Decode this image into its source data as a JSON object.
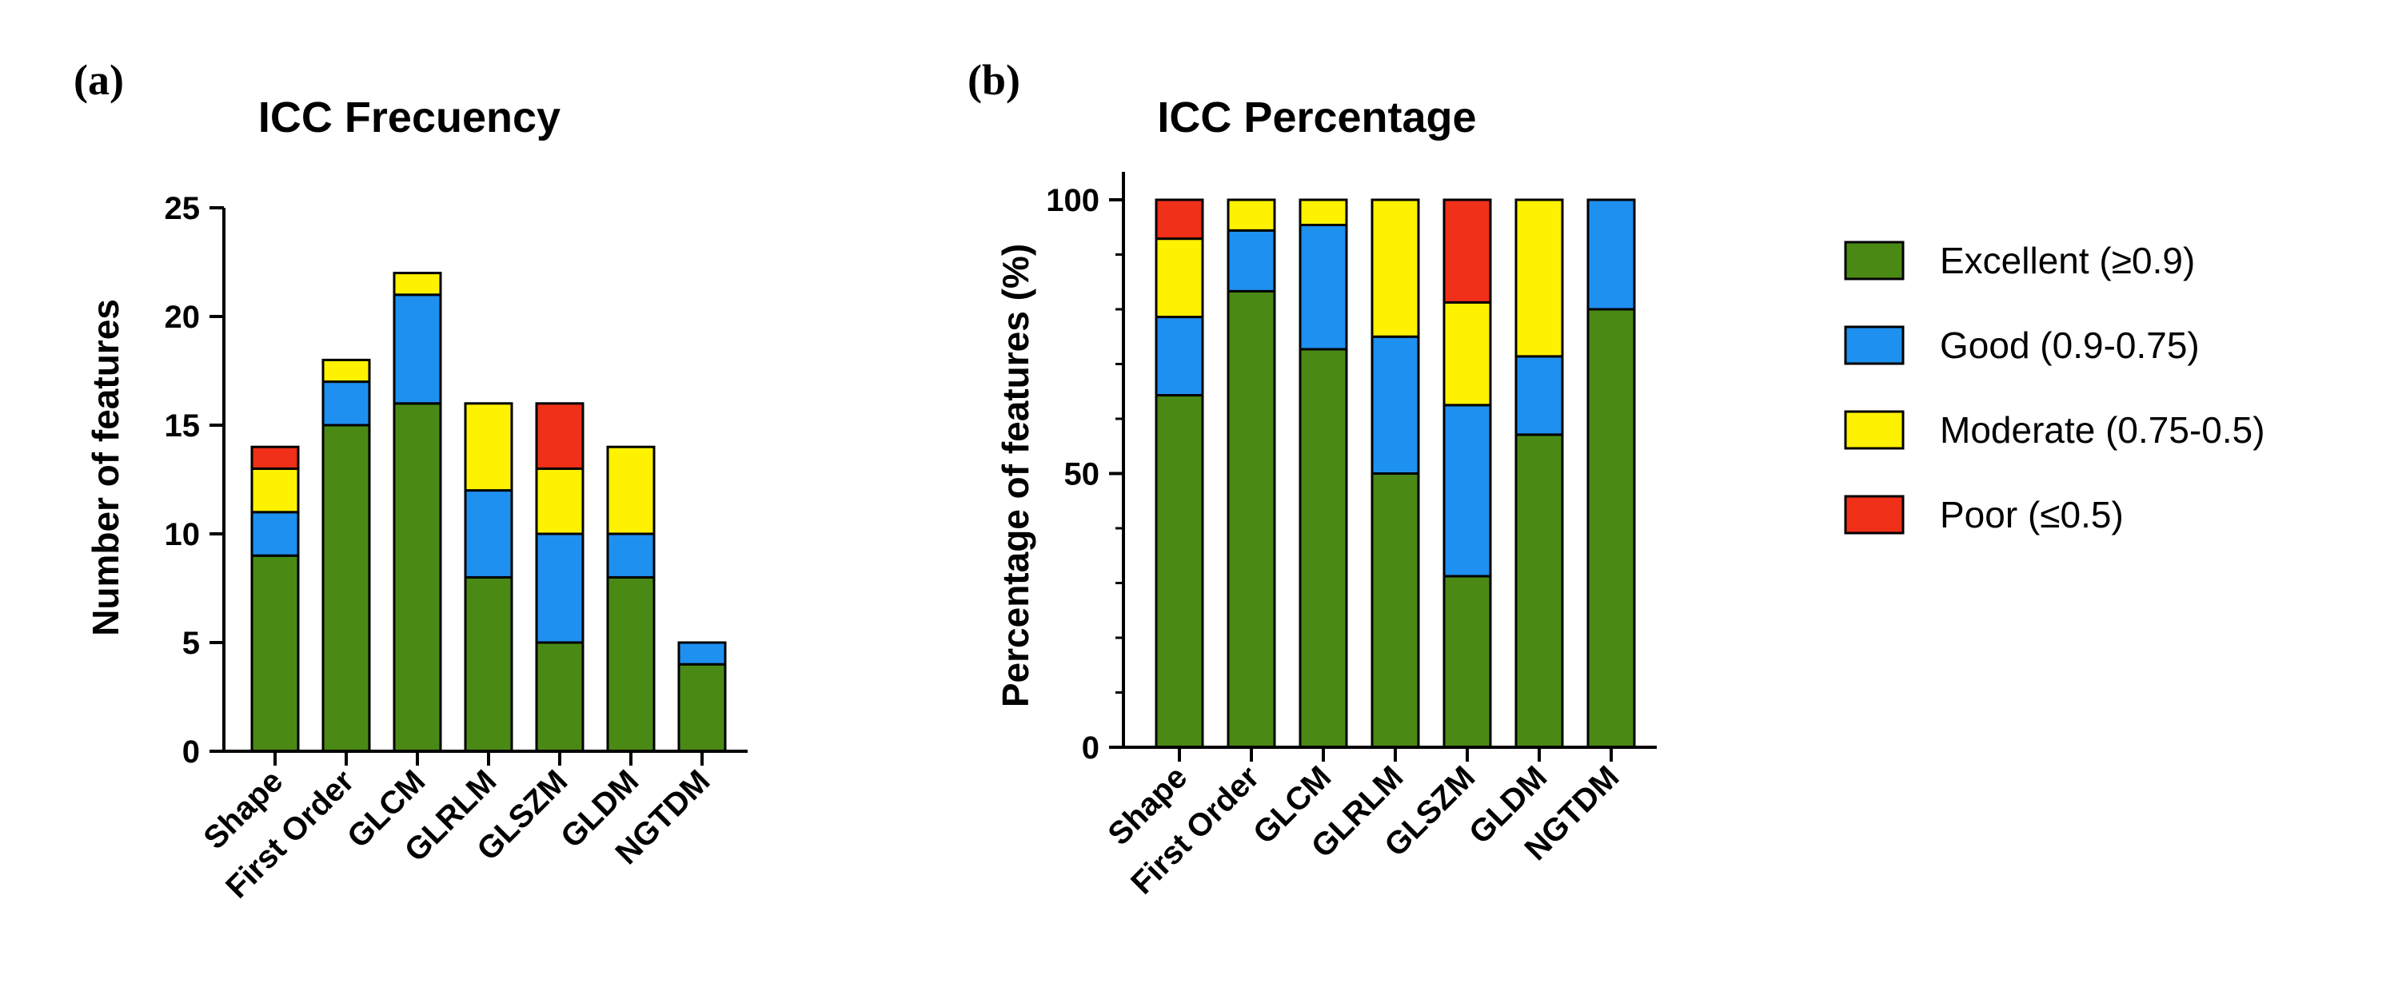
{
  "legend": {
    "entries": [
      {
        "label": "Excellent (≥0.9)",
        "color": "#4a8a14"
      },
      {
        "label": "Good (0.9-0.75)",
        "color": "#1e90f0"
      },
      {
        "label": "Moderate (0.75-0.5)",
        "color": "#fff200"
      },
      {
        "label": "Poor (≤0.5)",
        "color": "#f03018"
      }
    ]
  },
  "chart_data": [
    {
      "panel": "(a)",
      "type": "bar",
      "stacked": true,
      "title": "ICC Frecuency",
      "xlabel": "",
      "ylabel": "Number of features",
      "ylim": [
        0,
        25
      ],
      "yticks": [
        0,
        5,
        10,
        15,
        20,
        25
      ],
      "categories": [
        "Shape",
        "First Order",
        "GLCM",
        "GLRLM",
        "GLSZM",
        "GLDM",
        "NGTDM"
      ],
      "series": [
        {
          "name": "Excellent (≥0.9)",
          "color": "#4a8a14",
          "values": [
            9,
            15,
            16,
            8,
            5,
            8,
            4
          ]
        },
        {
          "name": "Good (0.9-0.75)",
          "color": "#1e90f0",
          "values": [
            2,
            2,
            5,
            4,
            5,
            2,
            1
          ]
        },
        {
          "name": "Moderate (0.75-0.5)",
          "color": "#fff200",
          "values": [
            2,
            1,
            1,
            4,
            3,
            4,
            0
          ]
        },
        {
          "name": "Poor (≤0.5)",
          "color": "#f03018",
          "values": [
            1,
            0,
            0,
            0,
            3,
            0,
            0
          ]
        }
      ]
    },
    {
      "panel": "(b)",
      "type": "bar",
      "stacked": true,
      "title": "ICC Percentage",
      "xlabel": "",
      "ylabel": "Percentage of features (%)",
      "ylim": [
        0,
        100
      ],
      "yticks": [
        0,
        50,
        100
      ],
      "categories": [
        "Shape",
        "First Order",
        "GLCM",
        "GLRLM",
        "GLSZM",
        "GLDM",
        "NGTDM"
      ],
      "series": [
        {
          "name": "Excellent (≥0.9)",
          "color": "#4a8a14",
          "values": [
            64.3,
            83.3,
            72.7,
            50,
            31.25,
            57.1,
            80
          ]
        },
        {
          "name": "Good (0.9-0.75)",
          "color": "#1e90f0",
          "values": [
            14.3,
            11.1,
            22.7,
            25,
            31.25,
            14.3,
            20
          ]
        },
        {
          "name": "Moderate (0.75-0.5)",
          "color": "#fff200",
          "values": [
            14.3,
            5.6,
            4.6,
            25,
            18.75,
            28.6,
            0
          ]
        },
        {
          "name": "Poor (≤0.5)",
          "color": "#f03018",
          "values": [
            7.1,
            0,
            0,
            0,
            18.75,
            0,
            0
          ]
        }
      ]
    }
  ]
}
